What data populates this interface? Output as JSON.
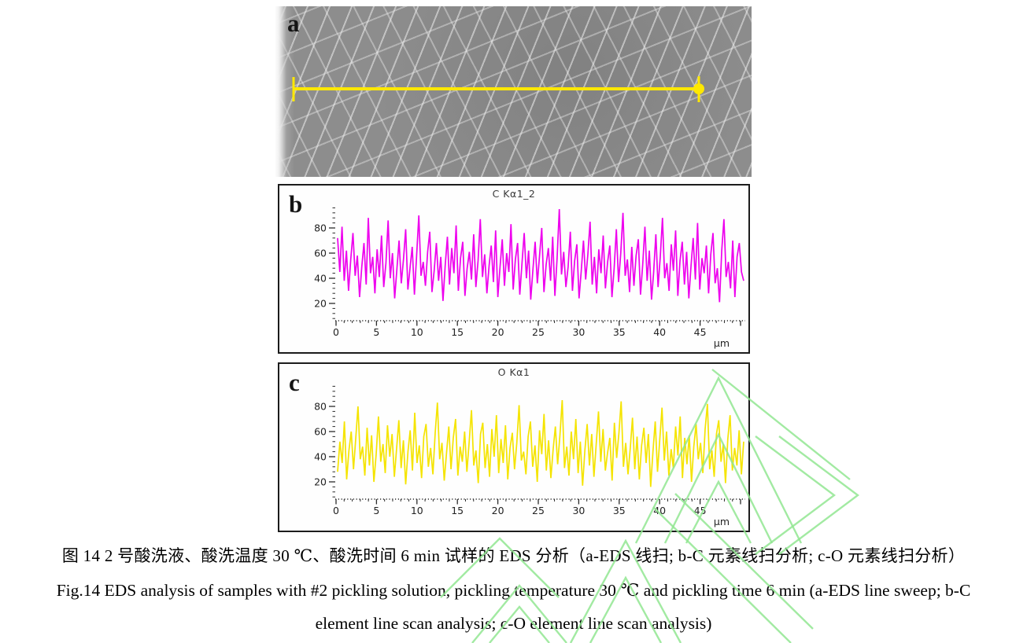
{
  "figure": {
    "caption_cn": "图 14 2 号酸洗液、酸洗温度 30 ℃、酸洗时间 6 min 试样的 EDS 分析（a-EDS 线扫; b-C 元素线扫分析; c-O 元素线扫分析）",
    "caption_en_line1": "Fig.14 EDS analysis of samples with #2 pickling solution, pickling temperature 30 ℃ and pickling time 6 min (a-EDS line sweep; b-C",
    "caption_en_line2": "element line scan analysis; c-O element line scan analysis)",
    "sem_panel": {
      "label": "a",
      "marker": "eds-line-scan"
    }
  },
  "colors": {
    "c_series": "#EE00EE",
    "o_series": "#F5E400",
    "sem_marker": "#FFE800",
    "watermark": "#92E692",
    "axis": "#2b2b2b",
    "panel_border": "#1c1c1c"
  },
  "chart_data": [
    {
      "type": "line",
      "panel_label": "b",
      "title": "C Kα1_2",
      "series_name": "C Kα1_2 line scan intensity",
      "color": "#EE00EE",
      "x_unit": "μm",
      "x_range": [
        0,
        49.5
      ],
      "xticks": [
        0,
        5,
        10,
        15,
        20,
        25,
        30,
        35,
        40,
        45
      ],
      "yticks": [
        20,
        40,
        60,
        80
      ],
      "ylim": [
        0,
        100
      ],
      "grid": false,
      "legend": "none",
      "values": [
        72,
        45,
        81,
        38,
        62,
        30,
        55,
        76,
        42,
        58,
        25,
        49,
        68,
        35,
        88,
        44,
        57,
        28,
        63,
        41,
        74,
        33,
        52,
        86,
        40,
        60,
        24,
        47,
        70,
        36,
        55,
        79,
        31,
        48,
        65,
        27,
        58,
        90,
        42,
        53,
        34,
        61,
        77,
        29,
        46,
        68,
        38,
        57,
        22,
        50,
        73,
        35,
        64,
        44,
        82,
        30,
        56,
        69,
        26,
        48,
        61,
        39,
        75,
        33,
        54,
        87,
        41,
        59,
        28,
        50,
        66,
        37,
        78,
        25,
        49,
        71,
        34,
        60,
        45,
        83,
        31,
        55,
        68,
        27,
        52,
        76,
        40,
        62,
        23,
        47,
        69,
        36,
        58,
        80,
        29,
        51,
        64,
        38,
        73,
        26,
        56,
        95,
        43,
        61,
        33,
        49,
        77,
        30,
        54,
        67,
        24,
        46,
        70,
        39,
        59,
        85,
        35,
        57,
        28,
        63,
        44,
        74,
        32,
        53,
        66,
        25,
        48,
        79,
        37,
        60,
        92,
        42,
        55,
        29,
        65,
        34,
        58,
        71,
        27,
        51,
        81,
        38,
        62,
        23,
        45,
        75,
        33,
        57,
        88,
        40,
        52,
        30,
        67,
        46,
        78,
        26,
        54,
        69,
        35,
        61,
        24,
        50,
        72,
        39,
        84,
        31,
        56,
        44,
        66,
        28,
        59,
        76,
        36,
        48,
        21,
        62,
        87,
        41,
        53,
        32,
        70,
        25,
        57,
        68,
        45,
        38
      ]
    },
    {
      "type": "line",
      "panel_label": "c",
      "title": "O Kα1",
      "series_name": "O Kα1 line scan intensity",
      "color": "#F5E400",
      "x_unit": "μm",
      "x_range": [
        0,
        49.5
      ],
      "xticks": [
        0,
        5,
        10,
        15,
        20,
        25,
        30,
        35,
        40,
        45
      ],
      "yticks": [
        20,
        40,
        60,
        80
      ],
      "ylim": [
        0,
        100
      ],
      "grid": false,
      "legend": "none",
      "values": [
        28,
        52,
        35,
        68,
        22,
        45,
        60,
        30,
        55,
        80,
        38,
        48,
        25,
        63,
        33,
        57,
        20,
        42,
        72,
        36,
        50,
        27,
        65,
        40,
        58,
        24,
        46,
        69,
        31,
        53,
        18,
        44,
        61,
        29,
        75,
        35,
        49,
        23,
        56,
        66,
        32,
        47,
        26,
        59,
        83,
        38,
        51,
        21,
        43,
        64,
        30,
        55,
        70,
        25,
        48,
        36,
        60,
        28,
        52,
        77,
        33,
        45,
        19,
        58,
        67,
        31,
        50,
        24,
        62,
        40,
        73,
        27,
        54,
        35,
        65,
        22,
        47,
        59,
        30,
        51,
        81,
        37,
        44,
        26,
        56,
        68,
        32,
        49,
        20,
        61,
        42,
        74,
        29,
        53,
        23,
        46,
        64,
        34,
        57,
        85,
        31,
        48,
        25,
        60,
        38,
        70,
        27,
        52,
        17,
        45,
        66,
        33,
        58,
        24,
        50,
        76,
        36,
        62,
        29,
        43,
        55,
        21,
        67,
        39,
        59,
        84,
        32,
        51,
        26,
        47,
        71,
        30,
        56,
        22,
        49,
        63,
        35,
        58,
        16,
        44,
        68,
        28,
        53,
        79,
        37,
        60,
        25,
        46,
        31,
        64,
        41,
        72,
        23,
        55,
        34,
        57,
        20,
        48,
        66,
        38,
        51,
        27,
        62,
        82,
        30,
        45,
        24,
        58,
        69,
        36,
        50,
        19,
        54,
        73,
        29,
        47,
        33,
        61,
        26,
        52
      ]
    }
  ]
}
